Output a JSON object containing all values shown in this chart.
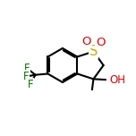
{
  "bg_color": "#ffffff",
  "line_color": "#000000",
  "S_color": "#ccaa00",
  "O_color": "#dd0000",
  "F_color": "#007700",
  "bond_width": 1.5,
  "font_size": 8.5,
  "figsize": [
    1.52,
    1.52
  ],
  "dpi": 100,
  "xlim": [
    0,
    10
  ],
  "ylim": [
    0,
    10
  ]
}
